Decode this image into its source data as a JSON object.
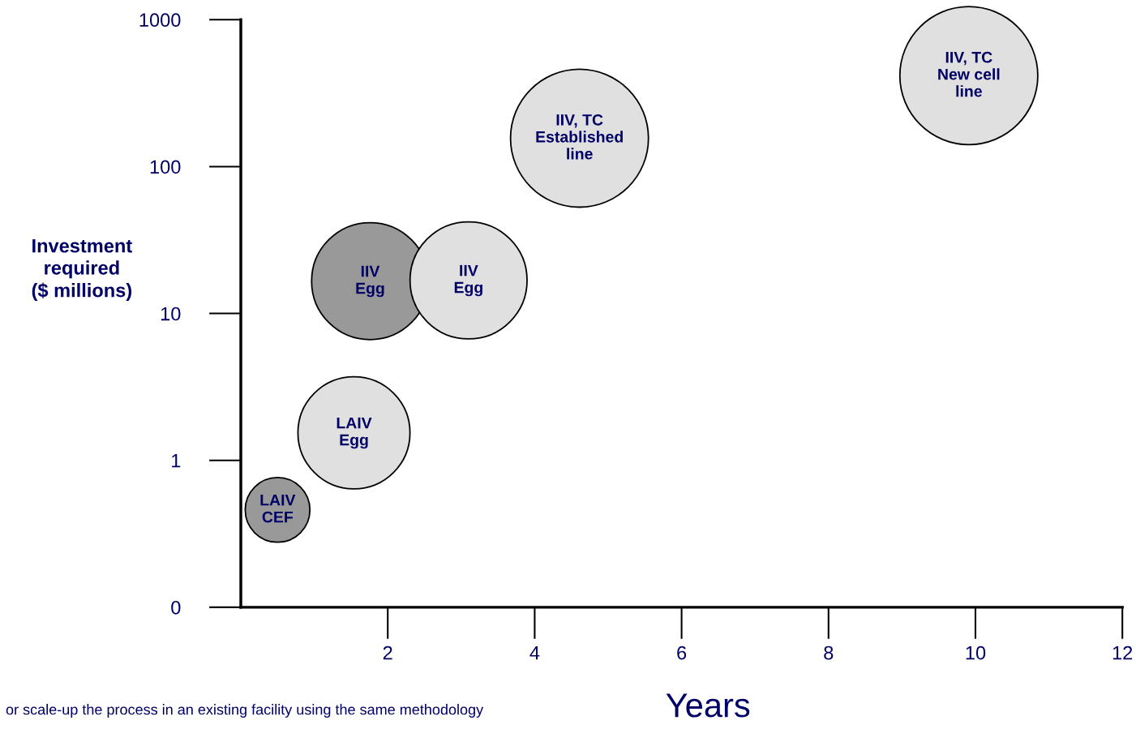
{
  "chart_data": {
    "type": "bubble",
    "x": [
      0.5,
      1.54,
      1.76,
      3.1,
      4.61,
      9.91
    ],
    "values": [
      0.46,
      1.54,
      16.6,
      16.8,
      156,
      416
    ],
    "sizes": [
      0.22,
      0.66,
      0.72,
      0.72,
      1,
      1
    ],
    "colors": [
      "#999999",
      "#e0e0e0",
      "#999999",
      "#e0e0e0",
      "#e0e0e0",
      "#e0e0e0"
    ],
    "xlabel": "Years",
    "ylabel": "Investment\nrequired\n($ millions)",
    "log": "y",
    "xlim": [
      0,
      12
    ],
    "xticks": [
      2,
      4,
      6,
      8,
      10,
      12
    ],
    "ylim": [
      0.1,
      1000
    ],
    "yticks": [
      {
        "value": 0.1,
        "label": "0"
      },
      1,
      10,
      100,
      1000
    ],
    "grid": false,
    "legend": false,
    "annotations": [
      {
        "text": "LAIV\nCEF",
        "x": 0.5,
        "y": 0.46
      },
      {
        "text": "LAIV\nEgg",
        "x": 1.54,
        "y": 1.54
      },
      {
        "text": "IIV\nEgg",
        "x": 1.76,
        "y": 16.6
      },
      {
        "text": "IIV\nEgg",
        "x": 3.1,
        "y": 16.8
      },
      {
        "text": "IIV, TC\nEstablished\nline",
        "x": 4.61,
        "y": 156
      },
      {
        "text": "IIV, TC\nNew cell\nline",
        "x": 9.91,
        "y": 416
      },
      "or scale-up the process in an existing facility using the same methodology"
    ]
  }
}
